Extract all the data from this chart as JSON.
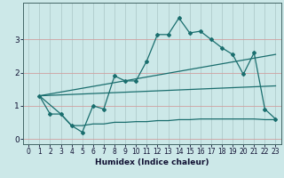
{
  "xlabel": "Humidex (Indice chaleur)",
  "bg_color": "#cce8e8",
  "grid_color_major": "#b0cccc",
  "grid_color_minor": "#daeaea",
  "line_color": "#1a6e6e",
  "xlim": [
    -0.5,
    23.5
  ],
  "ylim": [
    -0.15,
    4.1
  ],
  "xticks": [
    0,
    1,
    2,
    3,
    4,
    5,
    6,
    7,
    8,
    9,
    10,
    11,
    12,
    13,
    14,
    15,
    16,
    17,
    18,
    19,
    20,
    21,
    22,
    23
  ],
  "yticks": [
    0,
    1,
    2,
    3
  ],
  "line1_x": [
    1,
    2,
    3,
    4,
    5,
    6,
    7,
    8,
    9,
    10,
    11,
    12,
    13,
    14,
    15,
    16,
    17,
    18,
    19,
    20,
    21,
    22,
    23
  ],
  "line1_y": [
    1.3,
    0.75,
    0.75,
    0.4,
    0.2,
    1.0,
    0.9,
    1.9,
    1.75,
    1.75,
    2.35,
    3.15,
    3.15,
    3.65,
    3.2,
    3.25,
    3.0,
    2.75,
    2.55,
    1.95,
    2.6,
    0.9,
    0.6
  ],
  "line2_x": [
    1,
    3,
    4,
    5,
    6,
    7,
    8,
    9,
    10,
    11,
    12,
    13,
    14,
    15,
    16,
    17,
    18,
    19,
    20,
    21,
    22,
    23
  ],
  "line2_y": [
    1.3,
    0.75,
    0.4,
    0.4,
    0.45,
    0.45,
    0.5,
    0.5,
    0.52,
    0.52,
    0.55,
    0.55,
    0.58,
    0.58,
    0.6,
    0.6,
    0.6,
    0.6,
    0.6,
    0.6,
    0.58,
    0.58
  ],
  "line3_x": [
    1,
    23
  ],
  "line3_y": [
    1.3,
    2.55
  ],
  "line4_x": [
    1,
    23
  ],
  "line4_y": [
    1.3,
    1.6
  ]
}
